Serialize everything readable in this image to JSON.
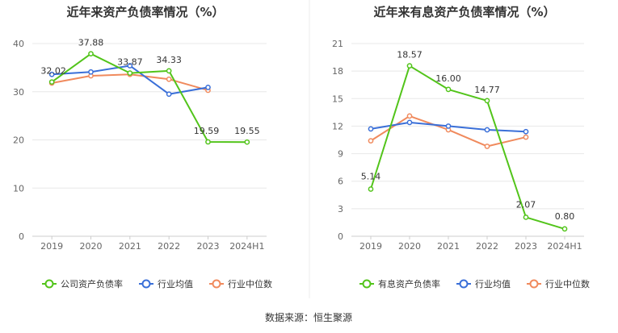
{
  "source": "数据来源：恒生聚源",
  "chart_data": [
    {
      "type": "line",
      "title": "近年来资产负债率情况（%）",
      "categories": [
        "2019",
        "2020",
        "2021",
        "2022",
        "2023",
        "2024H1"
      ],
      "ylim": [
        0,
        40
      ],
      "yticks": [
        0,
        10,
        20,
        30,
        40
      ],
      "grid": true,
      "legend": "bottom",
      "series": [
        {
          "name": "公司资产负债率",
          "color": "#52c41a",
          "values": [
            32.02,
            37.88,
            33.87,
            34.33,
            19.59,
            19.55
          ],
          "labels": [
            "32.02",
            "37.88",
            "33.87",
            "34.33",
            "19.59",
            "19.55"
          ]
        },
        {
          "name": "行业均值",
          "color": "#3a6fd8",
          "values": [
            33.6,
            34.1,
            35.4,
            29.5,
            30.9,
            null
          ]
        },
        {
          "name": "行业中位数",
          "color": "#f08a5d",
          "values": [
            31.8,
            33.3,
            33.6,
            32.6,
            30.3,
            null
          ]
        }
      ]
    },
    {
      "type": "line",
      "title": "近年来有息资产负债率情况（%）",
      "categories": [
        "2019",
        "2020",
        "2021",
        "2022",
        "2023",
        "2024H1"
      ],
      "ylim": [
        0,
        21
      ],
      "yticks": [
        0,
        3,
        6,
        9,
        12,
        15,
        18,
        21
      ],
      "grid": true,
      "legend": "bottom",
      "series": [
        {
          "name": "有息资产负债率",
          "color": "#52c41a",
          "values": [
            5.14,
            18.57,
            16.0,
            14.77,
            2.07,
            0.8
          ],
          "labels": [
            "5.14",
            "18.57",
            "16.00",
            "14.77",
            "2.07",
            "0.80"
          ]
        },
        {
          "name": "行业均值",
          "color": "#3a6fd8",
          "values": [
            11.7,
            12.4,
            12.0,
            11.6,
            11.4,
            null
          ]
        },
        {
          "name": "行业中位数",
          "color": "#f08a5d",
          "values": [
            10.4,
            13.1,
            11.6,
            9.8,
            10.8,
            null
          ]
        }
      ]
    }
  ]
}
